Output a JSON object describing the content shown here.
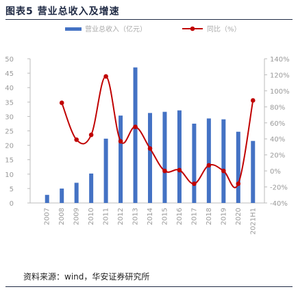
{
  "figure": {
    "title": "图表5 营业总收入及增速",
    "source": "资料来源：wind，华安证券研究所"
  },
  "chart_data": {
    "type": "bar",
    "categories": [
      "2007",
      "2008",
      "2009",
      "2010",
      "2011",
      "2012",
      "2013",
      "2014",
      "2015",
      "2016",
      "2017",
      "2018",
      "2019",
      "2020",
      "2021H1"
    ],
    "series": [
      {
        "name": "营业总收入（亿元）",
        "type": "bar",
        "axis": "left",
        "values": [
          2.8,
          5.0,
          7.0,
          10.2,
          22.3,
          30.3,
          47.0,
          31.2,
          31.6,
          32.1,
          27.5,
          29.3,
          29.0,
          24.7,
          21.5
        ]
      },
      {
        "name": "同比（%）",
        "type": "line",
        "axis": "right",
        "values": [
          null,
          85,
          39,
          45,
          118,
          37,
          55,
          28,
          0,
          1,
          -16,
          7,
          0,
          -16,
          88
        ]
      }
    ],
    "left_axis": {
      "min": 0,
      "max": 50,
      "ticks": [
        0,
        5,
        10,
        15,
        20,
        25,
        30,
        35,
        40,
        45,
        50
      ]
    },
    "right_axis": {
      "min": -40,
      "max": 140,
      "ticks": [
        "-40%",
        "-20%",
        "0%",
        "20%",
        "40%",
        "60%",
        "80%",
        "100%",
        "120%",
        "140%"
      ]
    },
    "grid": false,
    "legend_position": "top",
    "colors": {
      "bar": "#4472c4",
      "line": "#c00000"
    }
  }
}
